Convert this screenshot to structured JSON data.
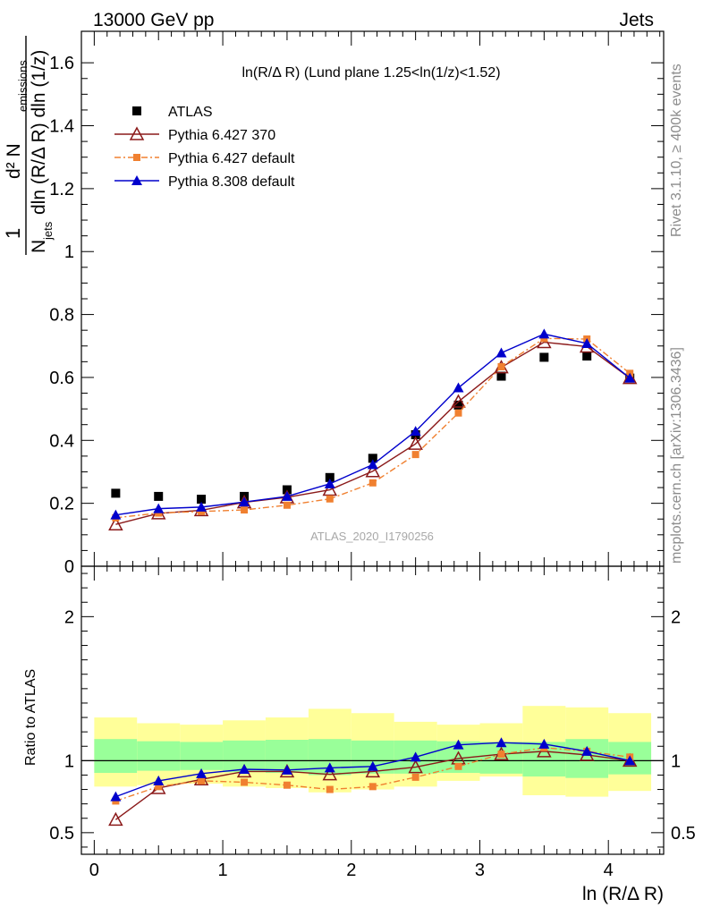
{
  "header": {
    "left": "13000 GeV pp",
    "right": "Jets"
  },
  "side_text": {
    "rivet": "Rivet 3.1.10, ≥ 400k events",
    "mcplots": "mcplots.cern.ch [arXiv:1306.3436]"
  },
  "watermark": "ATLAS_2020_I1790256",
  "chart_data": [
    {
      "type": "scatter",
      "title": "ln(R/Δ R) (Lund plane 1.25<ln(1/z)<1.52)",
      "ylabel": "1/N_jets d²N_emissions / dln(R/Δ R) dln(1/z)",
      "ylabel_parts": {
        "one": "1",
        "d2": "d² N",
        "emissions": "emissions",
        "n": "N",
        "jets": "jets",
        "rest": "dln (R/Δ R) dln (1/z)"
      },
      "xlabel": "ln (R/Δ R)",
      "xlim": [
        -0.1,
        4.43
      ],
      "ylim": [
        0,
        1.7
      ],
      "yticks": [
        "0",
        "0.2",
        "0.4",
        "0.6",
        "0.8",
        "1",
        "1.2",
        "1.4",
        "1.6"
      ],
      "x": [
        0.167,
        0.5,
        0.833,
        1.167,
        1.5,
        1.833,
        2.167,
        2.5,
        2.833,
        3.167,
        3.5,
        3.833,
        4.167
      ],
      "legend_position": "top-left",
      "series": [
        {
          "name": "ATLAS",
          "color": "#000000",
          "marker": "square",
          "values": [
            0.232,
            0.222,
            0.213,
            0.222,
            0.243,
            0.282,
            0.343,
            0.418,
            0.512,
            0.604,
            0.664,
            0.668,
            0.598
          ]
        },
        {
          "name": "Pythia 6.427 370",
          "color": "#8b1a1a",
          "marker": "open-triangle",
          "values": [
            0.133,
            0.168,
            0.178,
            0.203,
            0.219,
            0.243,
            0.302,
            0.389,
            0.523,
            0.632,
            0.712,
            0.698,
            0.598
          ]
        },
        {
          "name": "Pythia 6.427 default",
          "color": "#f08030",
          "marker": "square-small",
          "dash": "dashdot",
          "values": [
            0.154,
            0.169,
            0.174,
            0.179,
            0.194,
            0.214,
            0.265,
            0.355,
            0.487,
            0.634,
            0.724,
            0.722,
            0.613
          ]
        },
        {
          "name": "Pythia 8.308 default",
          "color": "#0000cc",
          "marker": "triangle",
          "values": [
            0.163,
            0.183,
            0.188,
            0.204,
            0.222,
            0.262,
            0.323,
            0.429,
            0.567,
            0.678,
            0.738,
            0.708,
            0.598
          ]
        }
      ]
    },
    {
      "type": "scatter",
      "ylabel": "Ratio to ATLAS",
      "xlabel": "ln (R/Δ R)",
      "xlim": [
        -0.1,
        4.43
      ],
      "ylim": [
        0.35,
        2.35
      ],
      "yticks": [
        "0.5",
        "1",
        "2"
      ],
      "xticks": [
        "0",
        "1",
        "2",
        "3",
        "4"
      ],
      "x": [
        0.167,
        0.5,
        0.833,
        1.167,
        1.5,
        1.833,
        2.167,
        2.5,
        2.833,
        3.167,
        3.5,
        3.833,
        4.167
      ],
      "bin_edges": [
        0.0,
        0.333,
        0.667,
        1.0,
        1.333,
        1.667,
        2.0,
        2.333,
        2.667,
        3.0,
        3.333,
        3.667,
        4.0,
        4.333
      ],
      "bands": {
        "stat_lo": [
          0.915,
          0.93,
          0.935,
          0.92,
          0.915,
          0.9,
          0.91,
          0.91,
          0.915,
          0.91,
          0.89,
          0.88,
          0.905
        ],
        "stat_hi": [
          1.15,
          1.135,
          1.13,
          1.14,
          1.145,
          1.15,
          1.14,
          1.14,
          1.135,
          1.13,
          1.13,
          1.15,
          1.13
        ],
        "total_lo": [
          0.82,
          0.83,
          0.84,
          0.82,
          0.81,
          0.78,
          0.8,
          0.82,
          0.86,
          0.89,
          0.76,
          0.75,
          0.79
        ],
        "total_hi": [
          1.3,
          1.26,
          1.25,
          1.28,
          1.3,
          1.36,
          1.33,
          1.27,
          1.25,
          1.26,
          1.38,
          1.37,
          1.33
        ],
        "stat_color": "#99ff99",
        "total_color": "#ffff99"
      },
      "series": [
        {
          "name": "Pythia 6.427 370",
          "color": "#8b1a1a",
          "marker": "open-triangle",
          "values": [
            0.59,
            0.81,
            0.87,
            0.925,
            0.925,
            0.905,
            0.925,
            0.955,
            1.015,
            1.045,
            1.065,
            1.04,
            1.0
          ]
        },
        {
          "name": "Pythia 6.427 default",
          "color": "#f08030",
          "marker": "square-small",
          "dash": "dashdot",
          "values": [
            0.72,
            0.82,
            0.86,
            0.85,
            0.83,
            0.8,
            0.82,
            0.885,
            0.96,
            1.045,
            1.09,
            1.065,
            1.025
          ]
        },
        {
          "name": "Pythia 8.308 default",
          "color": "#0000cc",
          "marker": "triangle",
          "values": [
            0.75,
            0.86,
            0.91,
            0.94,
            0.935,
            0.95,
            0.96,
            1.025,
            1.11,
            1.125,
            1.115,
            1.065,
            1.0
          ]
        }
      ]
    }
  ]
}
